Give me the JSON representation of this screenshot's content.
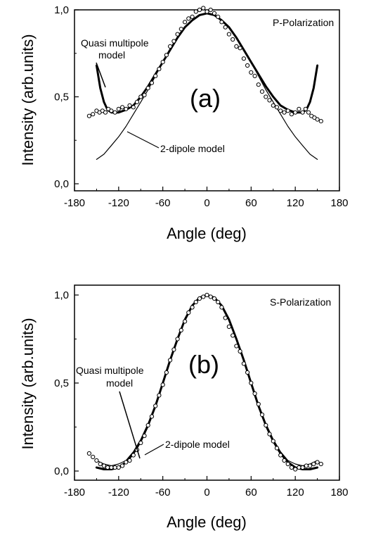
{
  "chart_data": [
    {
      "type": "line",
      "panel_label": "(a)",
      "polarization_label": "P-Polarization",
      "xlabel": "Angle (deg)",
      "ylabel": "Intensity (arb.units)",
      "xlim": [
        -180,
        180
      ],
      "ylim": [
        0,
        1
      ],
      "xticks": [
        "-180",
        "-120",
        "-60",
        "0",
        "60",
        "120",
        "180"
      ],
      "xtick_values": [
        -180,
        -120,
        -60,
        0,
        60,
        120,
        180
      ],
      "yticks": [
        "0,0",
        "0,5",
        "1,0"
      ],
      "ytick_values": [
        0,
        0.5,
        1
      ],
      "series": [
        {
          "name": "Quasi multipole model",
          "style": "thick",
          "x": [
            -150,
            -145,
            -140,
            -135,
            -130,
            -120,
            -110,
            -100,
            -90,
            -80,
            -70,
            -60,
            -50,
            -40,
            -30,
            -20,
            -10,
            0,
            10,
            20,
            30,
            40,
            50,
            60,
            70,
            80,
            90,
            100,
            110,
            120,
            130,
            135,
            140,
            145,
            150
          ],
          "y": [
            0.68,
            0.55,
            0.47,
            0.425,
            0.41,
            0.41,
            0.425,
            0.45,
            0.5,
            0.56,
            0.63,
            0.7,
            0.77,
            0.84,
            0.9,
            0.94,
            0.97,
            0.98,
            0.97,
            0.94,
            0.9,
            0.84,
            0.77,
            0.7,
            0.63,
            0.56,
            0.5,
            0.45,
            0.425,
            0.41,
            0.41,
            0.425,
            0.47,
            0.55,
            0.68
          ]
        },
        {
          "name": "2-dipole model",
          "style": "thin",
          "x": [
            -150,
            -140,
            -130,
            -120,
            -110,
            -100,
            -90,
            -80,
            -70,
            -60,
            -50,
            -40,
            -30,
            -20,
            -10,
            0,
            10,
            20,
            30,
            40,
            50,
            60,
            70,
            80,
            90,
            100,
            110,
            120,
            130,
            140,
            150
          ],
          "y": [
            0.14,
            0.17,
            0.22,
            0.27,
            0.33,
            0.4,
            0.47,
            0.54,
            0.62,
            0.7,
            0.77,
            0.84,
            0.9,
            0.94,
            0.97,
            0.98,
            0.97,
            0.94,
            0.9,
            0.84,
            0.77,
            0.7,
            0.62,
            0.54,
            0.47,
            0.4,
            0.33,
            0.27,
            0.22,
            0.17,
            0.14
          ]
        },
        {
          "name": "",
          "style": "points",
          "x": [
            -160,
            -155,
            -150,
            -146,
            -142,
            -138,
            -134,
            -130,
            -125,
            -120,
            -115,
            -110,
            -105,
            -100,
            -95,
            -90,
            -85,
            -80,
            -75,
            -70,
            -65,
            -60,
            -55,
            -50,
            -45,
            -40,
            -35,
            -30,
            -25,
            -20,
            -15,
            -10,
            -5,
            0,
            5,
            10,
            15,
            20,
            25,
            30,
            35,
            40,
            45,
            50,
            55,
            60,
            65,
            70,
            75,
            80,
            85,
            90,
            95,
            100,
            105,
            110,
            115,
            120,
            125,
            130,
            134,
            138,
            142,
            146,
            150,
            155
          ],
          "y": [
            0.39,
            0.4,
            0.42,
            0.41,
            0.42,
            0.41,
            0.43,
            0.42,
            0.41,
            0.43,
            0.44,
            0.43,
            0.45,
            0.44,
            0.47,
            0.5,
            0.51,
            0.55,
            0.58,
            0.62,
            0.66,
            0.7,
            0.74,
            0.79,
            0.82,
            0.86,
            0.89,
            0.93,
            0.95,
            0.96,
            0.99,
            1.0,
            1.01,
            0.99,
            1.0,
            0.98,
            0.96,
            0.93,
            0.9,
            0.86,
            0.83,
            0.79,
            0.78,
            0.72,
            0.68,
            0.64,
            0.62,
            0.57,
            0.53,
            0.5,
            0.48,
            0.45,
            0.44,
            0.42,
            0.41,
            0.42,
            0.4,
            0.41,
            0.43,
            0.41,
            0.43,
            0.41,
            0.39,
            0.38,
            0.37,
            0.36
          ]
        }
      ]
    },
    {
      "type": "line",
      "panel_label": "(b)",
      "polarization_label": "S-Polarization",
      "xlabel": "Angle (deg)",
      "ylabel": "Intensity (arb.units)",
      "xlim": [
        -180,
        180
      ],
      "ylim": [
        0,
        1
      ],
      "xticks": [
        "-180",
        "-120",
        "-60",
        "0",
        "60",
        "120",
        "180"
      ],
      "xtick_values": [
        -180,
        -120,
        -60,
        0,
        60,
        120,
        180
      ],
      "yticks": [
        "0,0",
        "0,5",
        "1,0"
      ],
      "ytick_values": [
        0,
        0.5,
        1
      ],
      "series": [
        {
          "name": "Quasi multipole model",
          "style": "thick",
          "x": [
            -150,
            -140,
            -130,
            -120,
            -110,
            -100,
            -90,
            -80,
            -70,
            -60,
            -50,
            -40,
            -30,
            -20,
            -10,
            0,
            10,
            20,
            30,
            40,
            50,
            60,
            70,
            80,
            90,
            100,
            110,
            120,
            130,
            140,
            150
          ],
          "y": [
            0.02,
            0.01,
            0.01,
            0.02,
            0.05,
            0.1,
            0.17,
            0.26,
            0.37,
            0.5,
            0.63,
            0.75,
            0.86,
            0.94,
            0.985,
            1.0,
            0.985,
            0.94,
            0.86,
            0.75,
            0.63,
            0.5,
            0.37,
            0.26,
            0.17,
            0.1,
            0.05,
            0.02,
            0.01,
            0.01,
            0.02
          ]
        },
        {
          "name": "2-dipole model",
          "style": "thin",
          "x": [
            -150,
            -140,
            -130,
            -120,
            -110,
            -100,
            -90,
            -80,
            -70,
            -60,
            -50,
            -40,
            -30,
            -20,
            -10,
            0,
            10,
            20,
            30,
            40,
            50,
            60,
            70,
            80,
            90,
            100,
            110,
            120,
            130,
            140,
            150
          ],
          "y": [
            0.06,
            0.04,
            0.03,
            0.04,
            0.06,
            0.11,
            0.18,
            0.27,
            0.38,
            0.5,
            0.63,
            0.75,
            0.86,
            0.94,
            0.985,
            1.0,
            0.985,
            0.94,
            0.86,
            0.75,
            0.63,
            0.5,
            0.38,
            0.27,
            0.18,
            0.11,
            0.06,
            0.04,
            0.03,
            0.04,
            0.06
          ]
        },
        {
          "name": "",
          "style": "points",
          "x": [
            -160,
            -155,
            -150,
            -145,
            -140,
            -135,
            -130,
            -125,
            -120,
            -115,
            -110,
            -105,
            -100,
            -95,
            -90,
            -85,
            -80,
            -75,
            -70,
            -65,
            -60,
            -55,
            -50,
            -45,
            -40,
            -35,
            -30,
            -25,
            -20,
            -15,
            -10,
            -5,
            0,
            5,
            10,
            15,
            20,
            25,
            30,
            35,
            40,
            45,
            50,
            55,
            60,
            65,
            70,
            75,
            80,
            85,
            90,
            95,
            100,
            105,
            110,
            115,
            120,
            125,
            130,
            135,
            140,
            145,
            150,
            155
          ],
          "y": [
            0.1,
            0.08,
            0.06,
            0.04,
            0.03,
            0.02,
            0.02,
            0.02,
            0.02,
            0.03,
            0.05,
            0.06,
            0.09,
            0.12,
            0.16,
            0.2,
            0.26,
            0.31,
            0.37,
            0.43,
            0.49,
            0.56,
            0.63,
            0.69,
            0.75,
            0.8,
            0.85,
            0.9,
            0.93,
            0.96,
            0.98,
            0.99,
            1.0,
            0.99,
            0.98,
            0.96,
            0.93,
            0.87,
            0.82,
            0.77,
            0.71,
            0.68,
            0.61,
            0.56,
            0.5,
            0.44,
            0.38,
            0.32,
            0.26,
            0.21,
            0.17,
            0.13,
            0.09,
            0.06,
            0.04,
            0.02,
            0.01,
            0.02,
            0.02,
            0.03,
            0.03,
            0.04,
            0.05,
            0.04
          ]
        }
      ]
    }
  ],
  "annotations": {
    "a": {
      "quasi": [
        "Quasi multipole",
        "model"
      ],
      "dipole": "2-dipole model"
    },
    "b": {
      "quasi": [
        "Quasi multipole",
        "model"
      ],
      "dipole": "2-dipole model"
    }
  }
}
